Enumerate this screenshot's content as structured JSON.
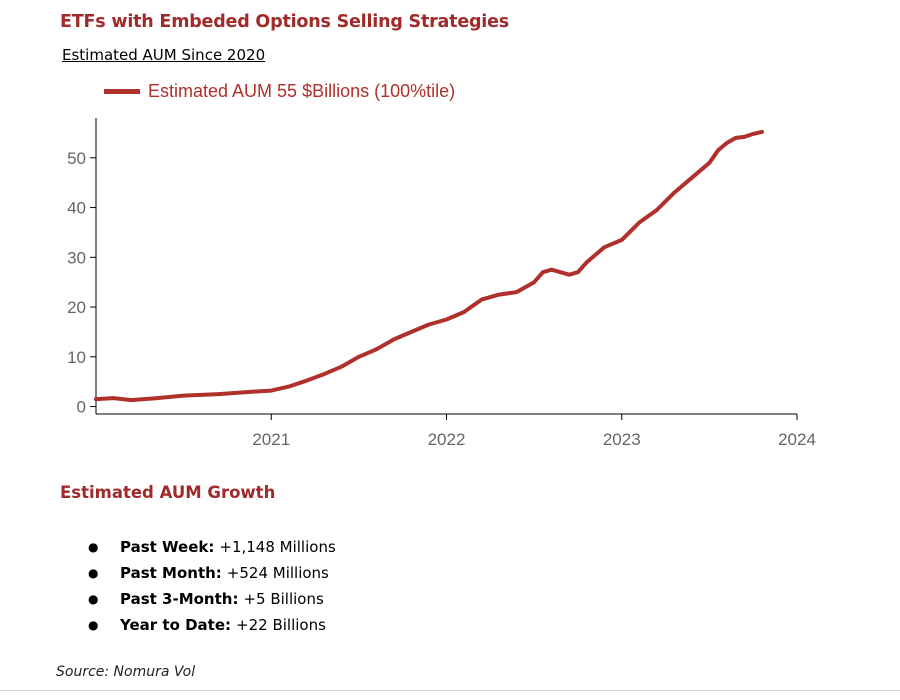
{
  "header": {
    "title": "ETFs with Embeded Options Selling Strategies",
    "subtitle": "Estimated AUM Since 2020"
  },
  "chart_data": {
    "type": "line",
    "legend_position": "top-left",
    "grid": false,
    "xlim": [
      2020.0,
      2024.0
    ],
    "ylim": [
      -1.5,
      58
    ],
    "x_ticks": [
      "2021",
      "2022",
      "2023",
      "2024"
    ],
    "y_ticks": [
      "0",
      "10",
      "20",
      "30",
      "40",
      "50"
    ],
    "series": [
      {
        "name": "Estimated AUM 55 $Billions (100%tile)",
        "color": "#b0302b",
        "x": [
          2020.0,
          2020.1,
          2020.2,
          2020.35,
          2020.5,
          2020.7,
          2020.9,
          2021.0,
          2021.1,
          2021.2,
          2021.3,
          2021.4,
          2021.5,
          2021.6,
          2021.7,
          2021.8,
          2021.9,
          2022.0,
          2022.1,
          2022.2,
          2022.3,
          2022.4,
          2022.5,
          2022.55,
          2022.6,
          2022.65,
          2022.7,
          2022.75,
          2022.8,
          2022.9,
          2023.0,
          2023.1,
          2023.2,
          2023.3,
          2023.4,
          2023.5,
          2023.55,
          2023.6,
          2023.65,
          2023.7,
          2023.75,
          2023.8
        ],
        "y": [
          1.5,
          1.7,
          1.3,
          1.7,
          2.2,
          2.5,
          3.0,
          3.2,
          4.0,
          5.2,
          6.5,
          8.0,
          10.0,
          11.5,
          13.5,
          15.0,
          16.5,
          17.5,
          19.0,
          21.5,
          22.5,
          23.0,
          25.0,
          27.0,
          27.5,
          27.0,
          26.5,
          27.0,
          29.0,
          32.0,
          33.5,
          37.0,
          39.5,
          43.0,
          46.0,
          49.0,
          51.5,
          53.0,
          54.0,
          54.2,
          54.8,
          55.2
        ]
      }
    ]
  },
  "growth": {
    "heading": "Estimated AUM Growth",
    "items": [
      {
        "label": "Past Week:",
        "value": "+1,148 Millions"
      },
      {
        "label": "Past Month:",
        "value": "+524 Millions"
      },
      {
        "label": "Past 3-Month:",
        "value": "+5 Billions"
      },
      {
        "label": "Year to Date:",
        "value": "+22 Billions"
      }
    ]
  },
  "source": "Source: Nomura Vol"
}
